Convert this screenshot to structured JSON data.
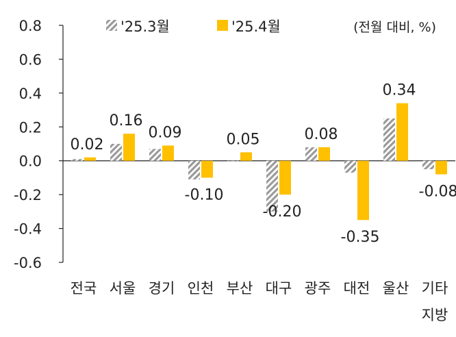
{
  "chart_data": {
    "type": "bar",
    "title": "",
    "unit_note": "(전월 대비, %)",
    "categories": [
      [
        "전국"
      ],
      [
        "서울"
      ],
      [
        "경기"
      ],
      [
        "인천"
      ],
      [
        "부산"
      ],
      [
        "대구"
      ],
      [
        "광주"
      ],
      [
        "대전"
      ],
      [
        "울산"
      ],
      [
        "기타",
        "지방"
      ]
    ],
    "series": [
      {
        "name": "'25.3월",
        "pattern": "hatched-gray",
        "color": "#9a9a9a",
        "values": [
          0.01,
          0.1,
          0.07,
          -0.11,
          0.0,
          -0.3,
          0.08,
          -0.07,
          0.25,
          -0.05
        ]
      },
      {
        "name": "'25.4월",
        "pattern": "solid",
        "color": "#FFC000",
        "values": [
          0.02,
          0.16,
          0.09,
          -0.1,
          0.05,
          -0.2,
          0.08,
          -0.35,
          0.34,
          -0.08
        ],
        "labels": [
          "0.02",
          "0.16",
          "0.09",
          "-0.10",
          "0.05",
          "-0.20",
          "0.08",
          "-0.35",
          "0.34",
          "-0.08"
        ]
      }
    ],
    "ylim": [
      -0.6,
      0.8
    ],
    "yticks": [
      0.8,
      0.6,
      0.4,
      0.2,
      0.0,
      -0.2,
      -0.4,
      -0.6
    ],
    "ytick_labels": [
      "0.8",
      "0.6",
      "0.4",
      "0.2",
      "0.0",
      "-0.2",
      "-0.4",
      "-0.6"
    ],
    "legend_position": "top",
    "grid": false,
    "xlabel": "",
    "ylabel": ""
  }
}
